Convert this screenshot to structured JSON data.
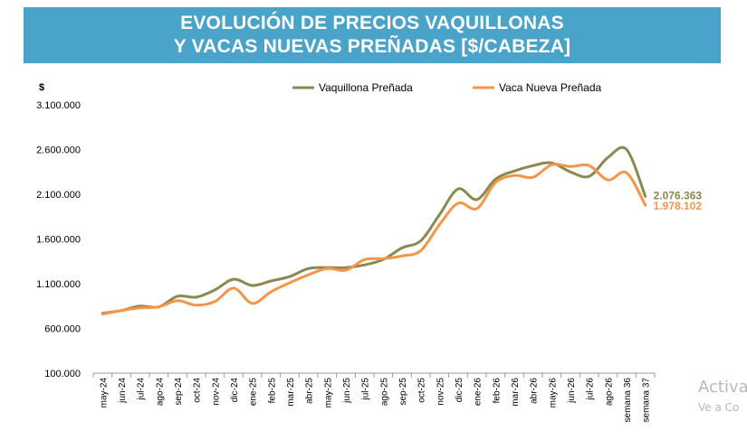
{
  "chart_data": {
    "type": "line",
    "title_lines": [
      "EVOLUCIÓN DE PRECIOS VAQUILLONAS",
      "Y VACAS NUEVAS PREÑADAS [$/CABEZA]"
    ],
    "ylabel": "$",
    "xlabel": "",
    "ylim": [
      100000,
      3100000
    ],
    "yticks": [
      "100.000",
      "600.000",
      "1.100.000",
      "1.600.000",
      "2.100.000",
      "2.600.000",
      "3.100.000"
    ],
    "grid": false,
    "legend_position": "top",
    "categories": [
      "may-24",
      "jun-24",
      "jul-24",
      "ago-24",
      "sep-24",
      "oct-24",
      "nov-24",
      "dic-24",
      "ene-25",
      "feb-25",
      "mar-25",
      "abr-25",
      "may-25",
      "jun-25",
      "jul-25",
      "ago-25",
      "sep-25",
      "oct-25",
      "nov-25",
      "dic-25",
      "ene-26",
      "feb-26",
      "mar-26",
      "abr-26",
      "may-26",
      "jun-26",
      "jul-26",
      "ago-26",
      "semana 36",
      "semana 37"
    ],
    "series": [
      {
        "name": "Vaquillona Preñada",
        "color": "#8b8850",
        "values": [
          770000,
          800000,
          850000,
          840000,
          960000,
          950000,
          1030000,
          1150000,
          1080000,
          1130000,
          1180000,
          1270000,
          1280000,
          1280000,
          1310000,
          1370000,
          1500000,
          1580000,
          1870000,
          2160000,
          2040000,
          2270000,
          2360000,
          2420000,
          2450000,
          2350000,
          2300000,
          2510000,
          2600000,
          2076363
        ],
        "end_label": "2.076.363"
      },
      {
        "name": "Vaca Nueva Preñada",
        "color": "#f4954a",
        "values": [
          760000,
          800000,
          830000,
          840000,
          910000,
          860000,
          900000,
          1050000,
          880000,
          1010000,
          1110000,
          1200000,
          1270000,
          1250000,
          1370000,
          1380000,
          1410000,
          1470000,
          1760000,
          2000000,
          1940000,
          2230000,
          2310000,
          2290000,
          2430000,
          2410000,
          2420000,
          2260000,
          2340000,
          1978102
        ],
        "end_label": "1.978.102"
      }
    ]
  },
  "watermark": {
    "line1": "Activa",
    "line2": "Ve a Co"
  }
}
